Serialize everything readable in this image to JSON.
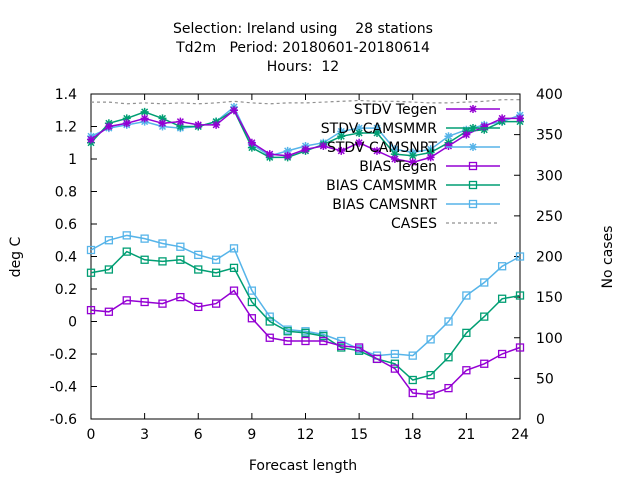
{
  "chart_data": {
    "type": "line",
    "title_lines": [
      "Selection: Ireland using    28 stations",
      "Td2m   Period: 20180601-20180614",
      "Hours:  12"
    ],
    "xlabel": "Forecast length",
    "ylabel": "deg C",
    "y2label": "No cases",
    "xlim": [
      0,
      24
    ],
    "ylim": [
      -0.6,
      1.4
    ],
    "y2lim": [
      0,
      400
    ],
    "xticks": [
      "0",
      "3",
      "6",
      "9",
      "12",
      "15",
      "18",
      "21",
      "24"
    ],
    "yticks": [
      "-0.6",
      "-0.4",
      "-0.2",
      "0",
      "0.2",
      "0.4",
      "0.6",
      "0.8",
      "1",
      "1.2",
      "1.4"
    ],
    "y2ticks": [
      "0",
      "50",
      "100",
      "150",
      "200",
      "250",
      "300",
      "350",
      "400"
    ],
    "grid": false,
    "legend_position": "top-right",
    "x": [
      0,
      1,
      2,
      3,
      4,
      5,
      6,
      7,
      8,
      9,
      10,
      11,
      12,
      13,
      14,
      15,
      16,
      17,
      18,
      19,
      20,
      21,
      22,
      23,
      24
    ],
    "series": [
      {
        "name": "STDV Tegen",
        "color": "#9400d3",
        "marker": "star",
        "axis": "y",
        "values": [
          1.12,
          1.2,
          1.22,
          1.25,
          1.22,
          1.23,
          1.21,
          1.21,
          1.3,
          1.1,
          1.03,
          1.02,
          1.06,
          1.08,
          1.05,
          1.1,
          1.05,
          1.0,
          0.98,
          1.01,
          1.08,
          1.15,
          1.2,
          1.25,
          1.25
        ]
      },
      {
        "name": "STDV CAMSMMR",
        "color": "#009e73",
        "marker": "star",
        "axis": "y",
        "values": [
          1.1,
          1.22,
          1.25,
          1.29,
          1.25,
          1.2,
          1.2,
          1.23,
          1.3,
          1.07,
          1.01,
          1.01,
          1.05,
          1.09,
          1.14,
          1.16,
          1.16,
          1.03,
          1.02,
          1.04,
          1.1,
          1.17,
          1.18,
          1.23,
          1.23
        ]
      },
      {
        "name": "STDV CAMSNRT",
        "color": "#56b4e9",
        "marker": "star",
        "axis": "y",
        "values": [
          1.14,
          1.19,
          1.21,
          1.23,
          1.2,
          1.19,
          1.2,
          1.23,
          1.32,
          1.09,
          1.02,
          1.05,
          1.08,
          1.1,
          1.17,
          1.19,
          1.19,
          1.06,
          1.04,
          1.06,
          1.14,
          1.18,
          1.21,
          1.23,
          1.27
        ]
      },
      {
        "name": "BIAS Tegen",
        "color": "#9400d3",
        "marker": "square",
        "axis": "y",
        "values": [
          0.07,
          0.06,
          0.13,
          0.12,
          0.11,
          0.15,
          0.09,
          0.11,
          0.19,
          0.02,
          -0.1,
          -0.12,
          -0.12,
          -0.12,
          -0.15,
          -0.16,
          -0.23,
          -0.29,
          -0.44,
          -0.45,
          -0.41,
          -0.3,
          -0.26,
          -0.2,
          -0.16
        ]
      },
      {
        "name": "BIAS CAMSMMR",
        "color": "#009e73",
        "marker": "square",
        "axis": "y",
        "values": [
          0.3,
          0.32,
          0.43,
          0.38,
          0.37,
          0.38,
          0.32,
          0.3,
          0.33,
          0.12,
          0.0,
          -0.06,
          -0.07,
          -0.09,
          -0.16,
          -0.18,
          -0.23,
          -0.26,
          -0.36,
          -0.33,
          -0.22,
          -0.07,
          0.03,
          0.14,
          0.16
        ]
      },
      {
        "name": "BIAS CAMSNRT",
        "color": "#56b4e9",
        "marker": "square",
        "axis": "y",
        "values": [
          0.44,
          0.5,
          0.53,
          0.51,
          0.48,
          0.46,
          0.41,
          0.38,
          0.45,
          0.19,
          0.03,
          -0.05,
          -0.06,
          -0.08,
          -0.12,
          -0.17,
          -0.21,
          -0.2,
          -0.21,
          -0.11,
          0.0,
          0.16,
          0.24,
          0.34,
          0.4
        ]
      },
      {
        "name": "CASES",
        "color": "#909090",
        "marker": "none",
        "dashed": true,
        "axis": "y2",
        "values": [
          390,
          390,
          388,
          389,
          388,
          389,
          388,
          389,
          391,
          389,
          388,
          389,
          389,
          390,
          391,
          392,
          391,
          391,
          390,
          389,
          389,
          390,
          391,
          393,
          393
        ]
      }
    ]
  }
}
